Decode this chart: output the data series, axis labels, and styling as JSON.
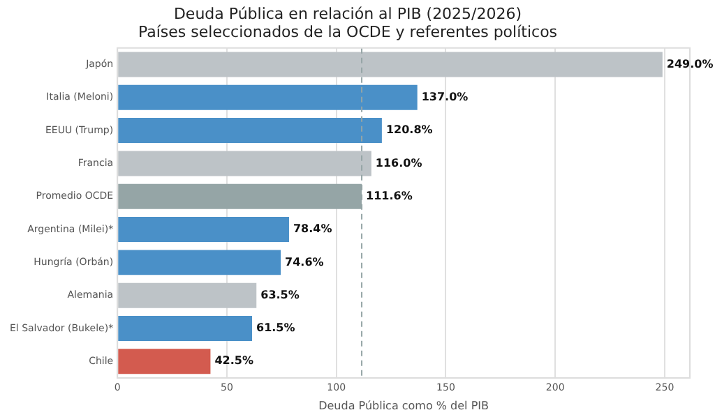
{
  "chart_data": {
    "type": "bar",
    "orientation": "horizontal",
    "title": "Deuda Pública en relación al PIB (2025/2026)",
    "subtitle": "Países seleccionados de la OCDE y referentes políticos",
    "xlabel": "Deuda Pública como % del PIB",
    "categories": [
      "Japón",
      "Italia (Meloni)",
      "EEUU (Trump)",
      "Francia",
      "Promedio OCDE",
      "Argentina (Milei)*",
      "Hungría (Orbán)",
      "Alemania",
      "El Salvador (Bukele)*",
      "Chile"
    ],
    "values": [
      249.0,
      137.0,
      120.8,
      116.0,
      111.6,
      78.4,
      74.6,
      63.5,
      61.5,
      42.5
    ],
    "colors": [
      "#bdc3c7",
      "#4a90c8",
      "#4a90c8",
      "#bdc3c7",
      "#95a5a6",
      "#4a90c8",
      "#4a90c8",
      "#bdc3c7",
      "#4a90c8",
      "#d35b4f"
    ],
    "value_labels": [
      "249.0%",
      "137.0%",
      "120.8%",
      "116.0%",
      "111.6%",
      "78.4%",
      "74.6%",
      "63.5%",
      "61.5%",
      "42.5%"
    ],
    "xlim": [
      0,
      261.5
    ],
    "xticks": [
      0,
      50,
      100,
      150,
      200,
      250
    ],
    "grid": "x",
    "legend": false,
    "ref_lines": [
      {
        "axis": "x",
        "value": 111.6,
        "color": "#95a5a6",
        "line_style": "dashed"
      }
    ]
  }
}
